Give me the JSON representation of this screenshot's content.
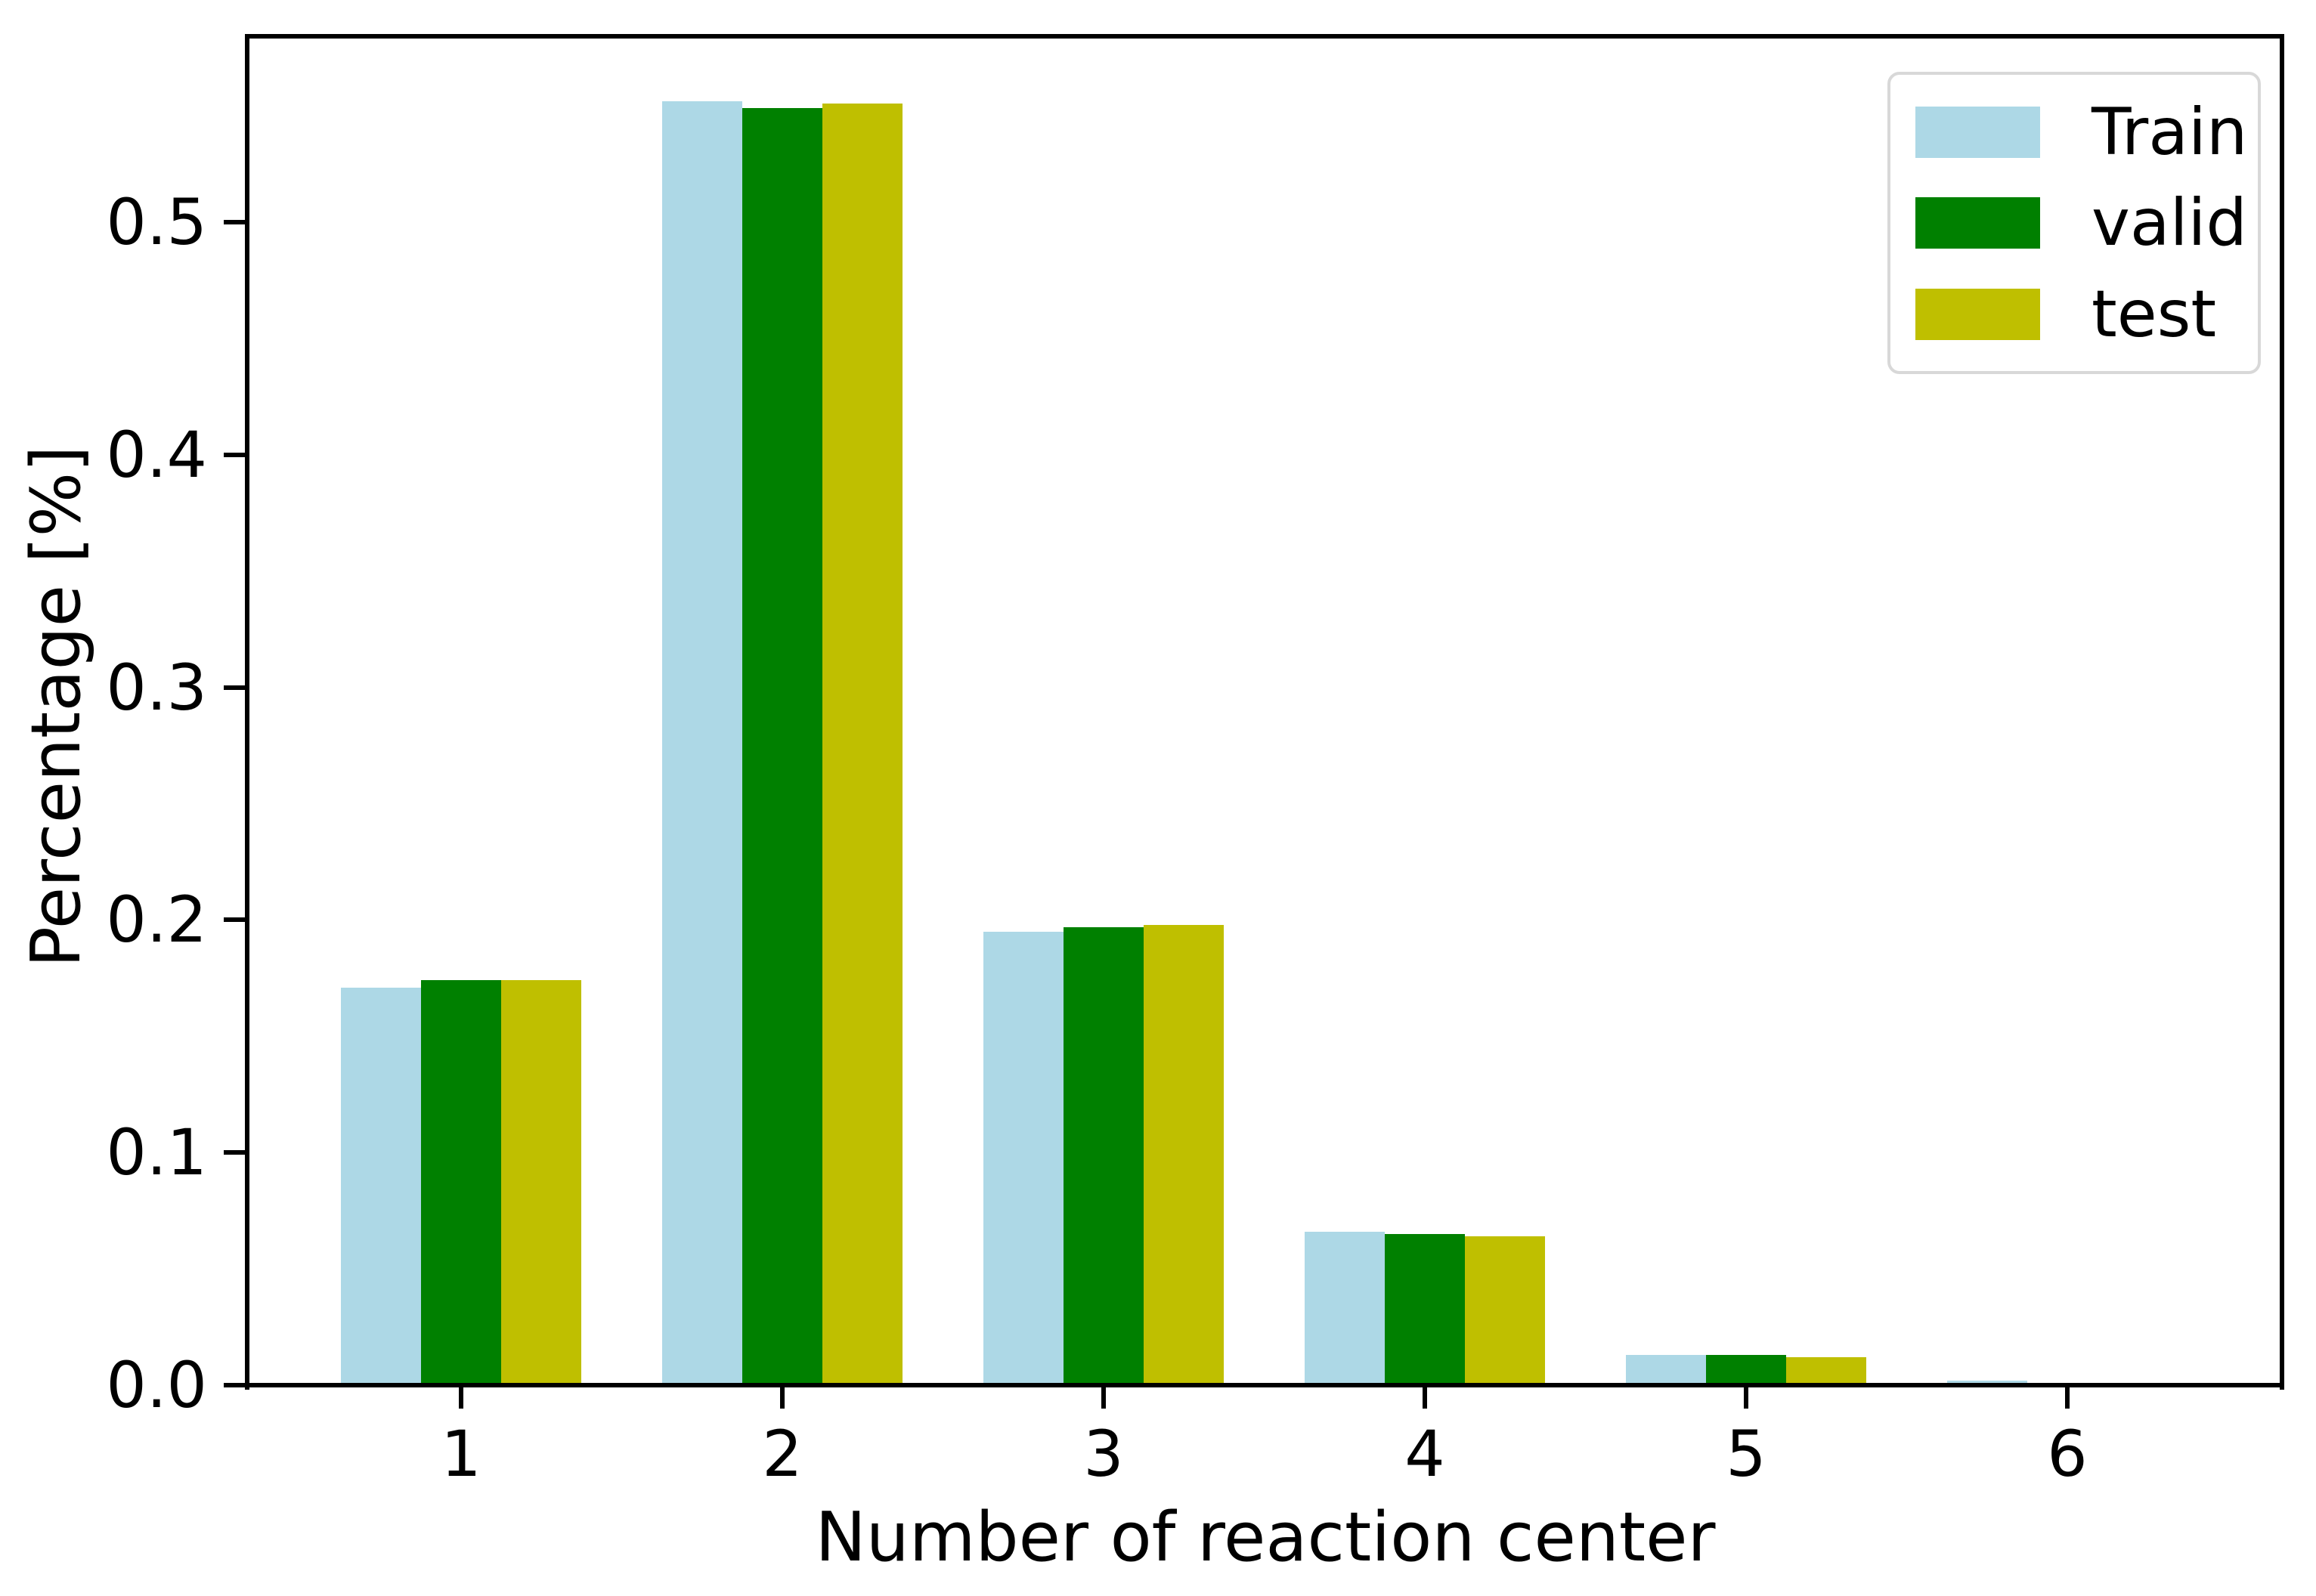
{
  "chart_data": {
    "type": "bar",
    "title": "",
    "xlabel": "Number of reaction center",
    "ylabel": "Percentage [%]",
    "categories": [
      "1",
      "2",
      "3",
      "4",
      "5",
      "6"
    ],
    "x_positions": [
      1,
      2,
      3,
      4,
      5,
      6
    ],
    "series": [
      {
        "name": "Train",
        "color": "#add8e6",
        "values": [
          0.171,
          0.552,
          0.195,
          0.066,
          0.013,
          0.002
        ]
      },
      {
        "name": "valid",
        "color": "#008000",
        "values": [
          0.174,
          0.549,
          0.197,
          0.065,
          0.013,
          0.001
        ]
      },
      {
        "name": "test",
        "color": "#bfbf00",
        "values": [
          0.174,
          0.551,
          0.198,
          0.064,
          0.012,
          0.001
        ]
      }
    ],
    "yticks": [
      {
        "value": 0.0,
        "label": "0.0"
      },
      {
        "value": 0.1,
        "label": "0.1"
      },
      {
        "value": 0.2,
        "label": "0.2"
      },
      {
        "value": 0.3,
        "label": "0.3"
      },
      {
        "value": 0.4,
        "label": "0.4"
      },
      {
        "value": 0.5,
        "label": "0.5"
      }
    ],
    "ylim": [
      0,
      0.58
    ],
    "xlim": [
      0.334,
      6.675
    ],
    "bar_width": 0.25,
    "grid": false,
    "legend": {
      "position": "upper right"
    },
    "axis_color": "#000000",
    "background_color": "#ffffff"
  }
}
